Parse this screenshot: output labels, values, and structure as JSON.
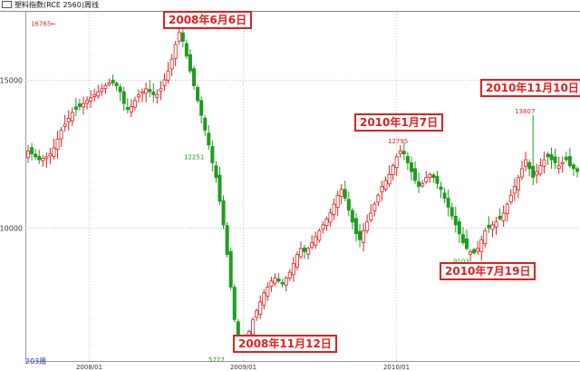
{
  "window": {
    "title": "塑料指数(RCE 2560)周线"
  },
  "chart_data": {
    "type": "candlestick",
    "period_label": "203周",
    "y_ticks": [
      10000,
      15000
    ],
    "x_ticks": [
      "2008/01",
      "2009/01",
      "2010/01"
    ],
    "ylim": [
      5500,
      17300
    ],
    "colors": {
      "up": "#e02020",
      "down": "#1f9d1f",
      "grid": "#c8c8c8"
    },
    "value_labels": [
      {
        "text": "16765←",
        "value": 16765,
        "color": "#e02020"
      },
      {
        "text": "12251",
        "value": 12251,
        "color": "#1f9d1f"
      },
      {
        "text": "5777",
        "value": 5777,
        "color": "#1f9d1f"
      },
      {
        "text": "12795",
        "value": 12795,
        "color": "#e02020"
      },
      {
        "text": "9103",
        "value": 9103,
        "color": "#1f9d1f"
      },
      {
        "text": "13807",
        "value": 13807,
        "color": "#e02020"
      }
    ],
    "annotations": [
      {
        "text": "2008年6月6日"
      },
      {
        "text": "2008年11月12日"
      },
      {
        "text": "2010年1月7日"
      },
      {
        "text": "2010年7月19日"
      },
      {
        "text": "2010年11月10日"
      }
    ],
    "closes": [
      12600,
      12500,
      12400,
      12300,
      12350,
      12400,
      12500,
      12700,
      13000,
      13300,
      13500,
      13700,
      13900,
      14000,
      14100,
      14200,
      14300,
      14400,
      14500,
      14600,
      14700,
      14800,
      14900,
      14900,
      14800,
      14600,
      14200,
      14000,
      14100,
      14300,
      14500,
      14600,
      14700,
      14600,
      14500,
      14500,
      14700,
      15000,
      15300,
      15700,
      16200,
      16600,
      16300,
      15800,
      15300,
      14800,
      14300,
      13800,
      13300,
      12800,
      12200,
      11700,
      10900,
      10100,
      9100,
      8000,
      6900,
      6300,
      6000,
      6150,
      6500,
      6900,
      7200,
      7500,
      7800,
      8000,
      8200,
      8300,
      8200,
      8100,
      8300,
      8500,
      8800,
      9100,
      9300,
      9200,
      9300,
      9500,
      9700,
      9900,
      10100,
      10300,
      10500,
      10800,
      11100,
      11300,
      11000,
      10600,
      10200,
      9800,
      9600,
      9900,
      10200,
      10500,
      10800,
      11100,
      11400,
      11600,
      11800,
      12100,
      12400,
      12600,
      12500,
      12200,
      11900,
      11600,
      11400,
      11500,
      11700,
      11800,
      11700,
      11500,
      11300,
      11000,
      10700,
      10400,
      10100,
      9800,
      9500,
      9300,
      9200,
      9150,
      9300,
      9600,
      9900,
      10000,
      10100,
      10200,
      10300,
      10500,
      10800,
      11100,
      11400,
      11700,
      12000,
      12300,
      12000,
      11700,
      11900,
      12100,
      12300,
      12400,
      12300,
      12200,
      12100,
      12200,
      12300,
      12100,
      12000,
      11900
    ]
  }
}
